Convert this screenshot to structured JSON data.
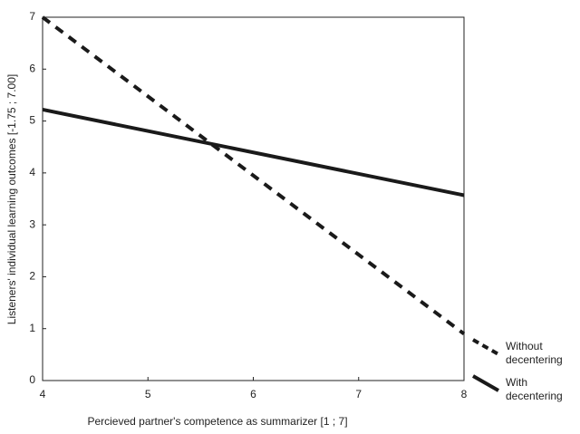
{
  "chart_data": {
    "type": "line",
    "xlabel": "Percieved partner's competence as summarizer [1 ; 7]",
    "ylabel": "Listeners' individual learning outcomes [-1.75 ; 7.00]",
    "x": [
      4,
      8
    ],
    "series": [
      {
        "name": "Without decentering",
        "color": "#1a1a1a",
        "dashed": true,
        "values": [
          7.0,
          0.9
        ]
      },
      {
        "name": "With decentering",
        "color": "#1a1a1a",
        "dashed": false,
        "values": [
          5.22,
          3.57
        ]
      }
    ],
    "xlim": [
      4,
      8
    ],
    "xticks": [
      4,
      5,
      6,
      7,
      8
    ],
    "ylim": [
      0,
      7
    ],
    "yticks": [
      0,
      1,
      2,
      3,
      4,
      5,
      6,
      7
    ],
    "grid": false
  }
}
